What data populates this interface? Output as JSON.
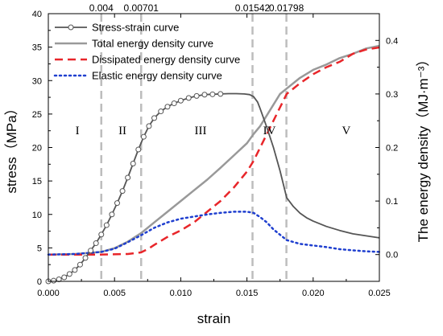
{
  "chart_data": {
    "type": "line",
    "xlabel": "strain",
    "ylabel": "stress（MPa）",
    "y2label": "The energy density（MJ·m⁻³）",
    "xlim": [
      0,
      0.025
    ],
    "ylim": [
      0,
      40
    ],
    "y2lim": [
      -0.05,
      0.45
    ],
    "x_ticks": [
      "0.000",
      "0.005",
      "0.010",
      "0.015",
      "0.020",
      "0.025"
    ],
    "x_tick_values": [
      0,
      0.005,
      0.01,
      0.015,
      0.02,
      0.025
    ],
    "y_ticks": [
      "0",
      "5",
      "10",
      "15",
      "20",
      "25",
      "30",
      "35",
      "40"
    ],
    "y_tick_values": [
      0,
      5,
      10,
      15,
      20,
      25,
      30,
      35,
      40
    ],
    "y2_ticks": [
      "0.0",
      "0.1",
      "0.2",
      "0.3",
      "0.4"
    ],
    "y2_tick_values": [
      0,
      0.1,
      0.2,
      0.3,
      0.4
    ],
    "grid": false,
    "legend_position": "top-left",
    "markers": [
      {
        "x": 0.004,
        "label": "0.004"
      },
      {
        "x": 0.00701,
        "label": "0.00701"
      },
      {
        "x": 0.01542,
        "label": "0.01542"
      },
      {
        "x": 0.01798,
        "label": "0.01798"
      }
    ],
    "stages": [
      {
        "label": "I",
        "x": 0.0022
      },
      {
        "label": "II",
        "x": 0.0056
      },
      {
        "label": "III",
        "x": 0.0115
      },
      {
        "label": "IV",
        "x": 0.0167
      },
      {
        "label": "V",
        "x": 0.0225
      }
    ],
    "stage_label_y": 22,
    "series": [
      {
        "name": "Stress-strain curve",
        "axis": "left",
        "color": "#555555",
        "style": "solid-circles",
        "x": [
          0,
          0.0004,
          0.0008,
          0.0012,
          0.0016,
          0.002,
          0.0024,
          0.0028,
          0.0032,
          0.0036,
          0.004,
          0.0044,
          0.0048,
          0.0052,
          0.0056,
          0.006,
          0.0064,
          0.0068,
          0.0072,
          0.0076,
          0.008,
          0.0085,
          0.009,
          0.0095,
          0.01,
          0.0106,
          0.0112,
          0.0118,
          0.0124,
          0.013,
          0.0136,
          0.0142,
          0.0148,
          0.0152,
          0.0155,
          0.0158,
          0.016,
          0.0165,
          0.017,
          0.0175,
          0.018,
          0.0185,
          0.019,
          0.0195,
          0.02,
          0.021,
          0.022,
          0.023,
          0.024,
          0.025
        ],
        "values": [
          0,
          0.1,
          0.3,
          0.6,
          1.1,
          1.7,
          2.5,
          3.5,
          4.6,
          5.7,
          7.0,
          8.4,
          10.0,
          11.7,
          13.5,
          15.5,
          17.6,
          19.7,
          21.6,
          23.2,
          24.4,
          25.4,
          26.1,
          26.6,
          27.0,
          27.4,
          27.7,
          27.9,
          27.95,
          28.0,
          28.05,
          28.05,
          28.0,
          27.9,
          27.6,
          26.8,
          25.8,
          23.0,
          20.0,
          16.5,
          12.5,
          11.2,
          10.2,
          9.5,
          9.0,
          8.2,
          7.6,
          7.1,
          6.8,
          6.5
        ]
      },
      {
        "name": "Total energy density curve",
        "axis": "right",
        "color": "#999999",
        "style": "solid",
        "x": [
          0,
          0.002,
          0.004,
          0.005,
          0.006,
          0.007,
          0.008,
          0.009,
          0.01,
          0.011,
          0.012,
          0.013,
          0.014,
          0.015,
          0.0155,
          0.016,
          0.0165,
          0.017,
          0.0175,
          0.018,
          0.019,
          0.02,
          0.021,
          0.022,
          0.023,
          0.024,
          0.025
        ],
        "values": [
          0.0,
          0.001,
          0.005,
          0.012,
          0.024,
          0.04,
          0.06,
          0.08,
          0.1,
          0.12,
          0.14,
          0.162,
          0.185,
          0.208,
          0.225,
          0.24,
          0.26,
          0.28,
          0.3,
          0.31,
          0.33,
          0.345,
          0.355,
          0.367,
          0.375,
          0.385,
          0.39
        ]
      },
      {
        "name": "Dissipated energy density curve",
        "axis": "right",
        "color": "#e8262a",
        "style": "dashed",
        "x": [
          0,
          0.002,
          0.004,
          0.006,
          0.007,
          0.0075,
          0.008,
          0.009,
          0.01,
          0.011,
          0.012,
          0.013,
          0.014,
          0.015,
          0.0155,
          0.016,
          0.0165,
          0.017,
          0.0175,
          0.018,
          0.019,
          0.02,
          0.021,
          0.022,
          0.023,
          0.024,
          0.025
        ],
        "values": [
          0.0,
          0.0,
          0.0,
          0.001,
          0.004,
          0.01,
          0.018,
          0.033,
          0.045,
          0.06,
          0.08,
          0.1,
          0.125,
          0.155,
          0.175,
          0.2,
          0.225,
          0.25,
          0.275,
          0.3,
          0.32,
          0.337,
          0.35,
          0.36,
          0.375,
          0.383,
          0.387
        ]
      },
      {
        "name": "Elastic energy density curve",
        "axis": "right",
        "color": "#1f3fcf",
        "style": "dotted",
        "x": [
          0,
          0.002,
          0.004,
          0.005,
          0.006,
          0.007,
          0.008,
          0.009,
          0.01,
          0.011,
          0.012,
          0.013,
          0.014,
          0.015,
          0.0155,
          0.016,
          0.0165,
          0.017,
          0.018,
          0.019,
          0.02,
          0.021,
          0.022,
          0.023,
          0.024,
          0.025
        ],
        "values": [
          0.0,
          0.001,
          0.005,
          0.011,
          0.023,
          0.036,
          0.05,
          0.06,
          0.067,
          0.071,
          0.075,
          0.078,
          0.08,
          0.08,
          0.078,
          0.07,
          0.06,
          0.047,
          0.027,
          0.02,
          0.017,
          0.014,
          0.01,
          0.008,
          0.006,
          0.005
        ]
      }
    ]
  }
}
